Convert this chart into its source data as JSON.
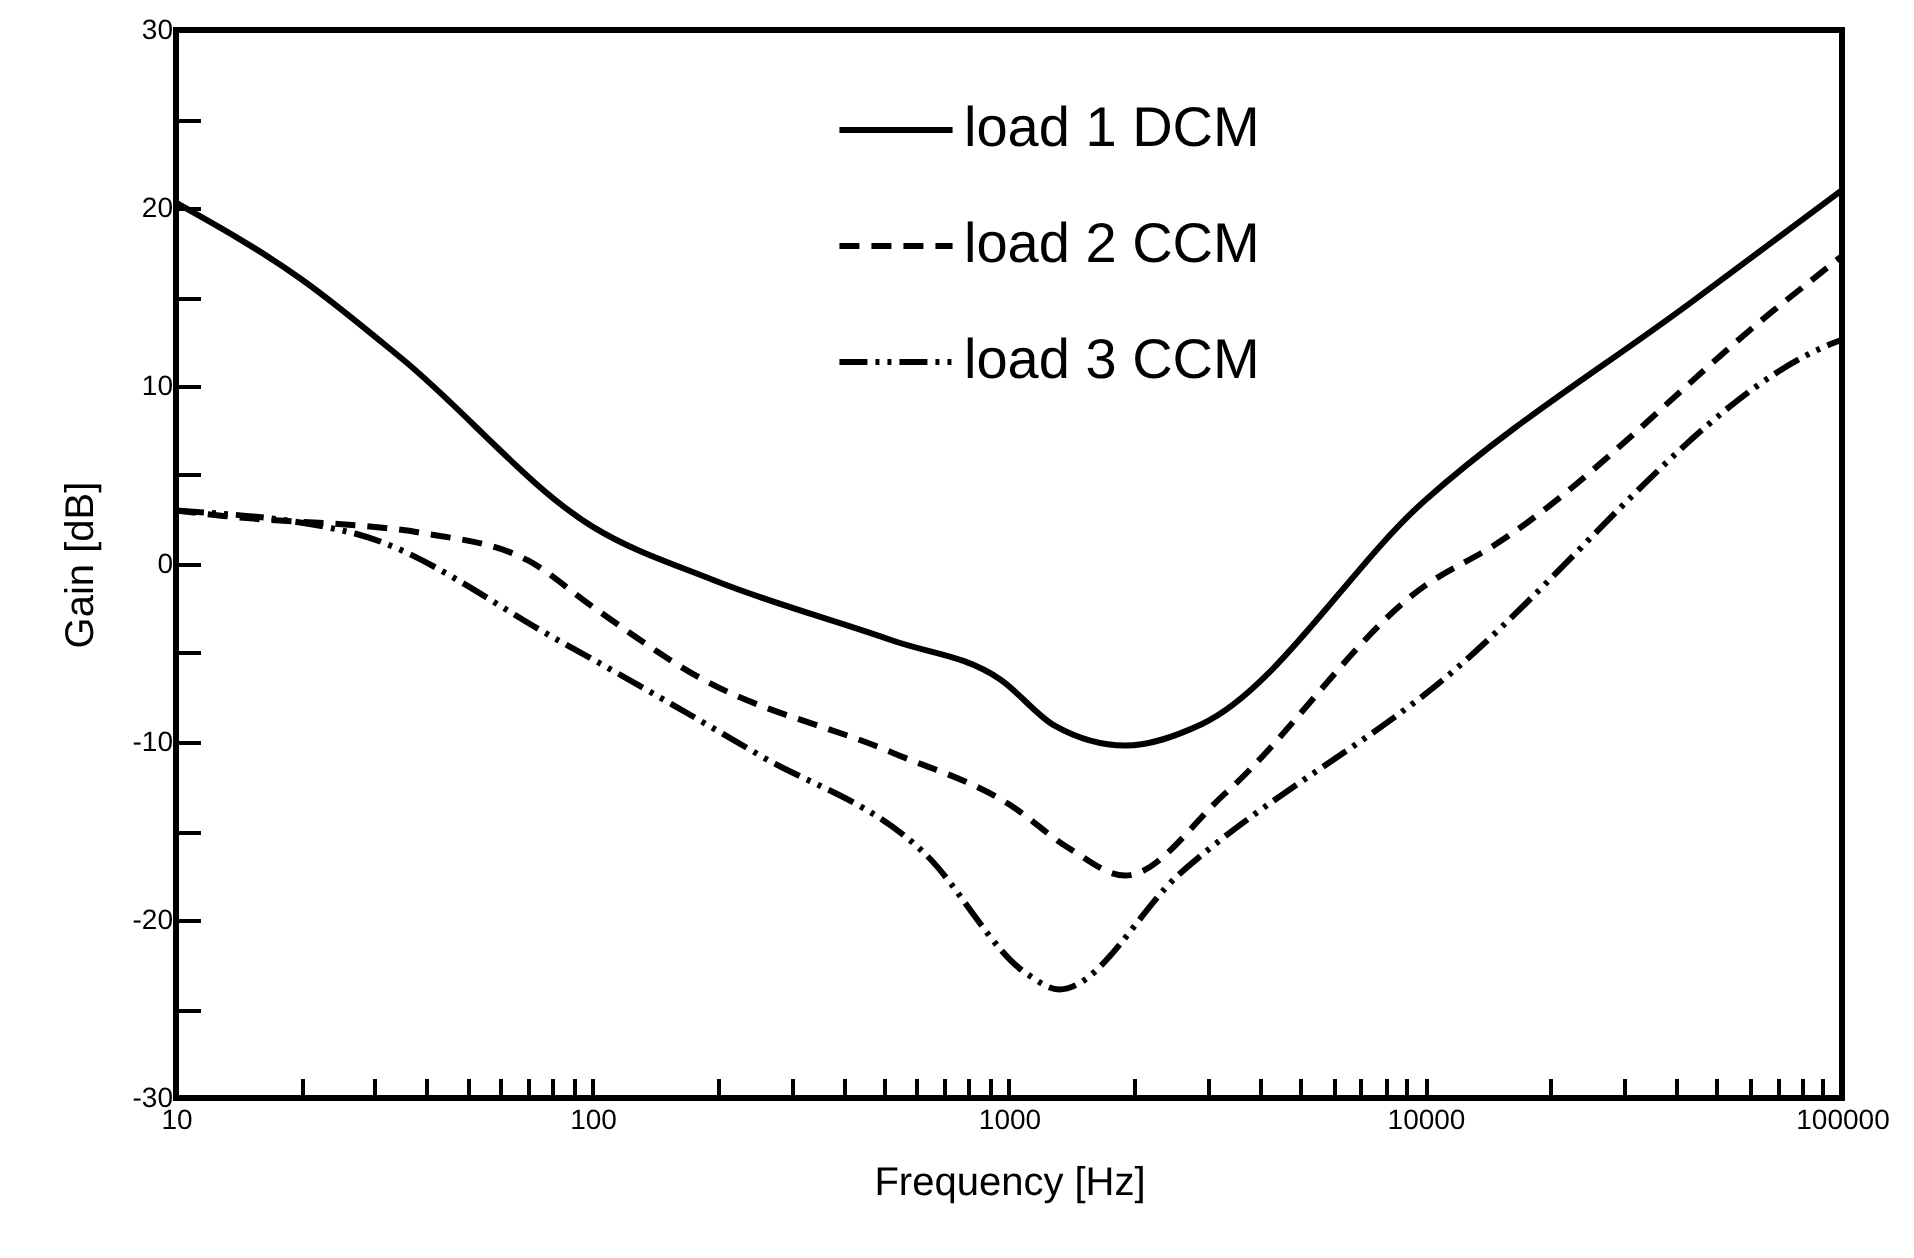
{
  "chart_data": {
    "type": "line",
    "xlabel": "Frequency [Hz]",
    "ylabel": "Gain [dB]",
    "log": "x",
    "grid": false,
    "legend": "top",
    "marker": "none",
    "xlim": [
      10,
      100000
    ],
    "ylim": [
      -30,
      30
    ],
    "xticks": [
      10,
      {
        "value": 20,
        "label": null
      },
      {
        "value": 30,
        "label": null
      },
      {
        "value": 40,
        "label": null
      },
      {
        "value": 50,
        "label": null
      },
      {
        "value": 60,
        "label": null
      },
      {
        "value": 70,
        "label": null
      },
      {
        "value": 80,
        "label": null
      },
      {
        "value": 90,
        "label": null
      },
      100,
      {
        "value": 200,
        "label": null
      },
      {
        "value": 300,
        "label": null
      },
      {
        "value": 400,
        "label": null
      },
      {
        "value": 500,
        "label": null
      },
      {
        "value": 600,
        "label": null
      },
      {
        "value": 700,
        "label": null
      },
      {
        "value": 800,
        "label": null
      },
      {
        "value": 900,
        "label": null
      },
      1000,
      {
        "value": 2000,
        "label": null
      },
      {
        "value": 3000,
        "label": null
      },
      {
        "value": 4000,
        "label": null
      },
      {
        "value": 5000,
        "label": null
      },
      {
        "value": 6000,
        "label": null
      },
      {
        "value": 7000,
        "label": null
      },
      {
        "value": 8000,
        "label": null
      },
      {
        "value": 9000,
        "label": null
      },
      10000,
      {
        "value": 20000,
        "label": null
      },
      {
        "value": 30000,
        "label": null
      },
      {
        "value": 40000,
        "label": null
      },
      {
        "value": 50000,
        "label": null
      },
      {
        "value": 60000,
        "label": null
      },
      {
        "value": 70000,
        "label": null
      },
      {
        "value": 80000,
        "label": null
      },
      {
        "value": 90000,
        "label": null
      },
      100000
    ],
    "yticks": [
      -30,
      {
        "value": -25,
        "label": null
      },
      -20,
      {
        "value": -15,
        "label": null
      },
      -10,
      {
        "value": -5,
        "label": null
      },
      0,
      {
        "value": 5,
        "label": null
      },
      10,
      {
        "value": 15,
        "label": null
      },
      20,
      {
        "value": 25,
        "label": null
      },
      30
    ],
    "series": [
      {
        "name": "load 1 DCM",
        "color": "#000000",
        "line_style": "solid",
        "x": [
          10,
          20,
          35,
          100,
          195,
          525,
          955,
          1290,
          1900,
          2900,
          10000,
          44000,
          100000
        ],
        "values": [
          20.3,
          16.0,
          11.5,
          2.1,
          -0.9,
          -4.3,
          -6.5,
          -9.1,
          -10.2,
          -9.0,
          3.6,
          14.8,
          21.0
        ]
      },
      {
        "name": "load 2 CCM",
        "color": "#000000",
        "line_style": "dashed",
        "x": [
          10,
          13,
          40,
          70,
          100,
          175,
          525,
          1000,
          1400,
          1900,
          3300,
          10000,
          14500,
          69000,
          100000
        ],
        "values": [
          3.0,
          2.7,
          1.7,
          0.2,
          -2.4,
          -6.2,
          -10.6,
          -13.5,
          -16.0,
          -17.5,
          -12.9,
          -1.2,
          1.0,
          14.3,
          17.3
        ]
      },
      {
        "name": "load 3 CCM",
        "color": "#000000",
        "line_style": "dotted",
        "x": [
          10,
          27,
          83,
          250,
          630,
          1100,
          1320,
          2570,
          10000,
          95000,
          100000
        ],
        "values": [
          3.0,
          1.7,
          -4.3,
          -10.7,
          -16.3,
          -23.0,
          -23.9,
          -17.4,
          -7.3,
          12.4,
          12.6
        ]
      }
    ]
  }
}
